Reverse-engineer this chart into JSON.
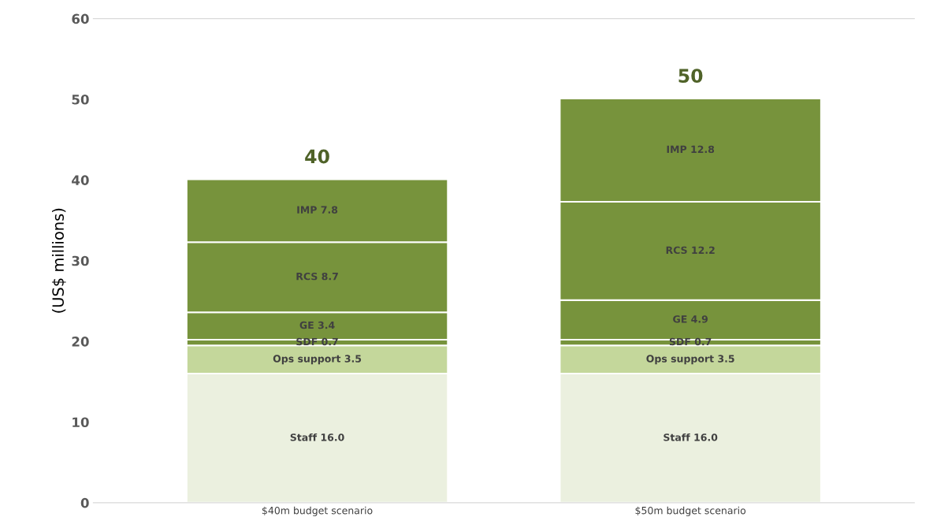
{
  "chart_data": {
    "type": "bar",
    "stacked": true,
    "ylabel": "(US$ millions)",
    "categories": [
      "$40m budget scenario",
      "$50m budget scenario"
    ],
    "series": [
      {
        "color": "#ebf0df",
        "values": [
          16.0,
          16.0
        ],
        "value_labels": [
          "Staff 16.0",
          "Staff 16.0"
        ]
      },
      {
        "color": "#c4d79b",
        "values": [
          3.5,
          3.5
        ],
        "value_labels": [
          "Ops support 3.5",
          "Ops support 3.5"
        ]
      },
      {
        "color": "#77933c",
        "values": [
          0.7,
          0.7
        ],
        "value_labels": [
          "SDF 0.7",
          "SDF 0.7"
        ]
      },
      {
        "color": "#77933c",
        "values": [
          3.4,
          4.9
        ],
        "value_labels": [
          "GE 3.4",
          "GE 4.9"
        ]
      },
      {
        "color": "#77933c",
        "values": [
          8.7,
          12.2
        ],
        "value_labels": [
          "RCS 8.7",
          "RCS 12.2"
        ]
      },
      {
        "color": "#77933c",
        "values": [
          7.8,
          12.8
        ],
        "value_labels": [
          "IMP 7.8",
          "IMP 12.8"
        ]
      }
    ],
    "totals": [
      "40",
      "50"
    ],
    "ylim": [
      0,
      60
    ],
    "yticks": [
      0,
      10,
      20,
      30,
      40,
      50,
      60
    ],
    "grid": false
  }
}
